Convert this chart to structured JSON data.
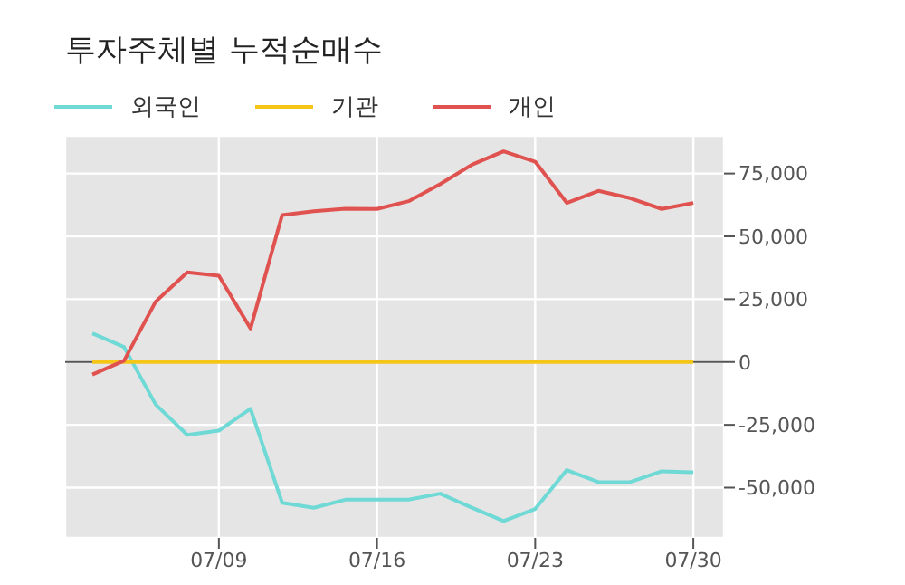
{
  "chart_data": {
    "type": "line",
    "title": "투자주체별 누적순매수",
    "categories": [
      null,
      null,
      null,
      null,
      "07/09",
      null,
      null,
      null,
      null,
      "07/16",
      null,
      null,
      null,
      null,
      "07/23",
      null,
      null,
      null,
      null,
      "07/30"
    ],
    "series": [
      {
        "name": "외국인",
        "color": "#6fd9d6",
        "values": [
          11400,
          6000,
          -16900,
          -29000,
          -27300,
          -18600,
          -56000,
          -58000,
          -54800,
          -54800,
          -54800,
          -52400,
          -58000,
          -63300,
          -58500,
          -43000,
          -47800,
          -47800,
          -43500,
          -43900
        ]
      },
      {
        "name": "기관",
        "color": "#f5c518",
        "values": [
          0,
          0,
          0,
          0,
          0,
          0,
          0,
          0,
          0,
          0,
          0,
          0,
          0,
          0,
          0,
          0,
          0,
          0,
          0,
          0
        ]
      },
      {
        "name": "개인",
        "color": "#e0524f",
        "values": [
          -5000,
          500,
          24000,
          35700,
          34300,
          13300,
          58500,
          60000,
          61000,
          60900,
          64000,
          70800,
          78500,
          83800,
          79700,
          63300,
          68100,
          65200,
          60900,
          63300
        ]
      }
    ],
    "ylim": [
      -70000,
      90000
    ],
    "yticks": [
      {
        "value": -50000,
        "label": "-50,000"
      },
      {
        "value": -25000,
        "label": "-25,000"
      },
      0,
      {
        "value": 25000,
        "label": "25,000"
      },
      {
        "value": 50000,
        "label": "50,000"
      },
      {
        "value": 75000,
        "label": "75,000"
      }
    ],
    "ref_lines": [
      {
        "axis": "y",
        "value": 0,
        "color": "#555555"
      }
    ],
    "grid": true,
    "legend": "top left",
    "marker": "none",
    "line_style": "solid"
  }
}
